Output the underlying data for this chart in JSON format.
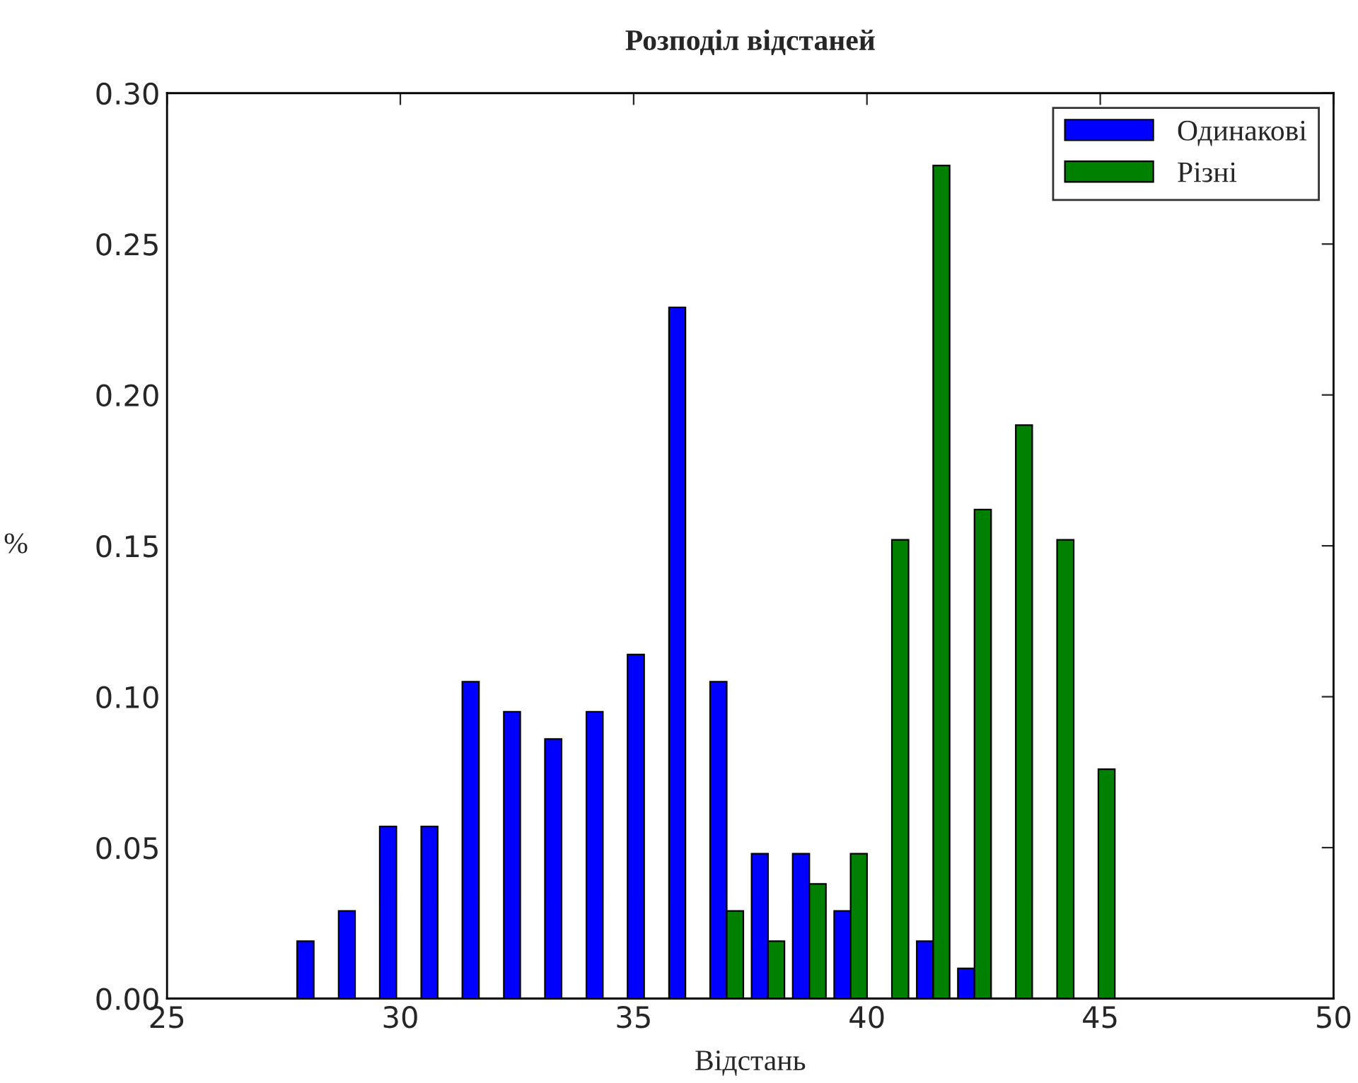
{
  "chart_data": {
    "type": "histogram",
    "title": "Розподіл відстаней",
    "xlabel": "Відстань",
    "ylabel": "%",
    "bins": [
      27.7,
      28.59,
      29.47,
      30.36,
      31.24,
      32.13,
      33.01,
      33.9,
      34.78,
      35.67,
      36.55,
      37.44,
      38.32,
      39.21,
      40.09,
      40.98,
      41.86,
      42.75,
      43.63,
      44.52,
      45.4
    ],
    "series": [
      {
        "name": "Одинакові",
        "color": "#0000ff",
        "values": [
          0.019,
          0.029,
          0.057,
          0.057,
          0.105,
          0.095,
          0.086,
          0.095,
          0.114,
          0.229,
          0.105,
          0.048,
          0.048,
          0.029,
          0,
          0.019,
          0.01,
          0,
          0,
          0
        ]
      },
      {
        "name": "Різні",
        "color": "#008000",
        "values": [
          0,
          0,
          0,
          0,
          0,
          0,
          0,
          0,
          0,
          0,
          0.029,
          0.019,
          0.038,
          0.048,
          0.152,
          0.276,
          0.162,
          0.19,
          0.152,
          0.076
        ]
      }
    ],
    "xlim": [
      25,
      50
    ],
    "xticks": [
      25,
      30,
      35,
      40,
      45,
      50
    ],
    "ylim": [
      0,
      0.3
    ],
    "yticks": [
      {
        "value": 0,
        "label": "0.00"
      },
      {
        "value": 0.05,
        "label": "0.05"
      },
      {
        "value": 0.1,
        "label": "0.10"
      },
      {
        "value": 0.15,
        "label": "0.15"
      },
      {
        "value": 0.2,
        "label": "0.20"
      },
      {
        "value": 0.25,
        "label": "0.25"
      },
      {
        "value": 0.3,
        "label": "0.30"
      }
    ],
    "grid": false,
    "legend": "top right"
  }
}
